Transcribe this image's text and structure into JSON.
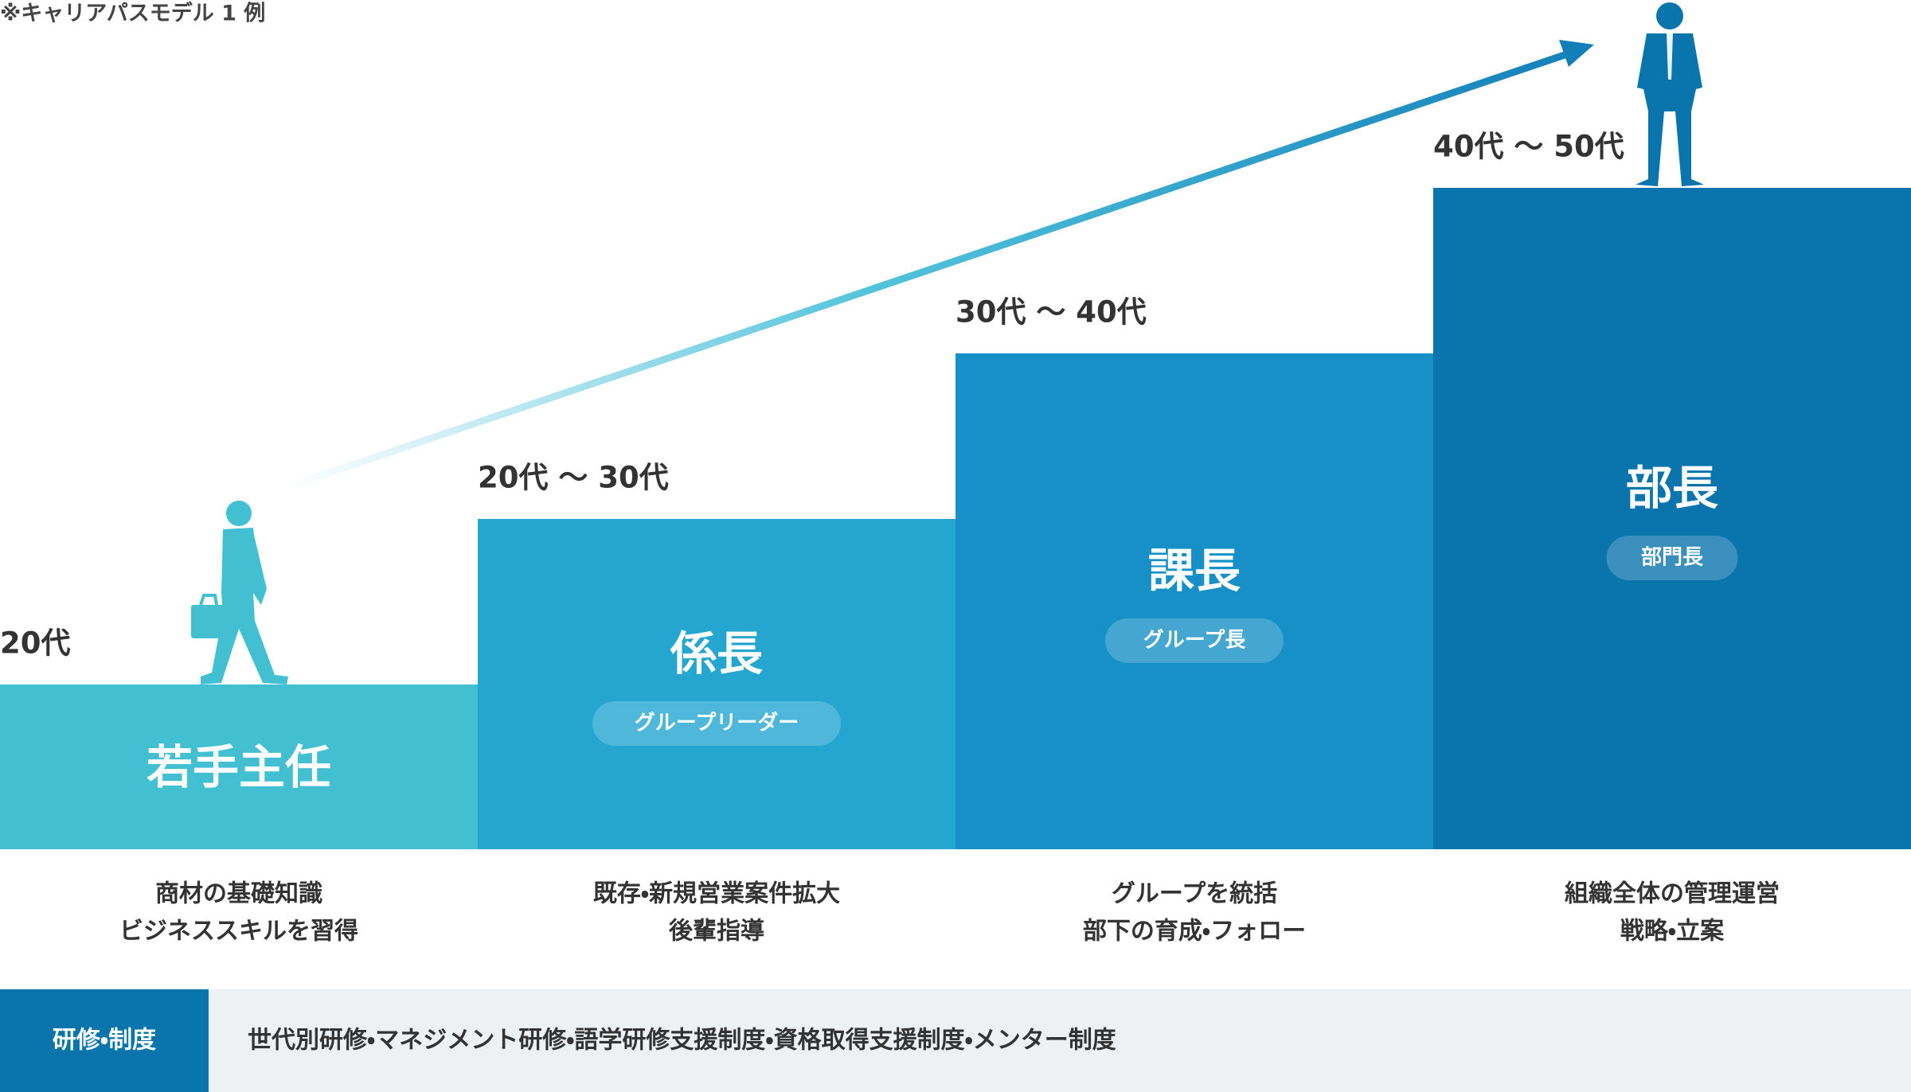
{
  "note": "※キャリアパスモデル 1 例",
  "stages": [
    {
      "age": "20代",
      "title": "若手主任",
      "desc": [
        "商材の基礎知識",
        "ビジネススキルを習得"
      ]
    },
    {
      "age": "20代 ～ 30代",
      "title": "係長",
      "role": "グループリーダー",
      "desc": [
        "既存・新規営業案件拡大",
        "後輩指導"
      ]
    },
    {
      "age": "30代 ～ 40代",
      "title": "課長",
      "role": "グループ長",
      "desc": [
        "グループを統括",
        "部下の育成・フォロー"
      ]
    },
    {
      "age": "40代 ～ 50代",
      "title": "部長",
      "role": "部門長",
      "desc": [
        "組織全体の管理運営",
        "戦略・立案"
      ]
    }
  ],
  "training": {
    "label": "研修・制度",
    "text": "世代別研修・マネジメント研修・語学研修支援制度・資格取得支援制度・メンター制度"
  }
}
